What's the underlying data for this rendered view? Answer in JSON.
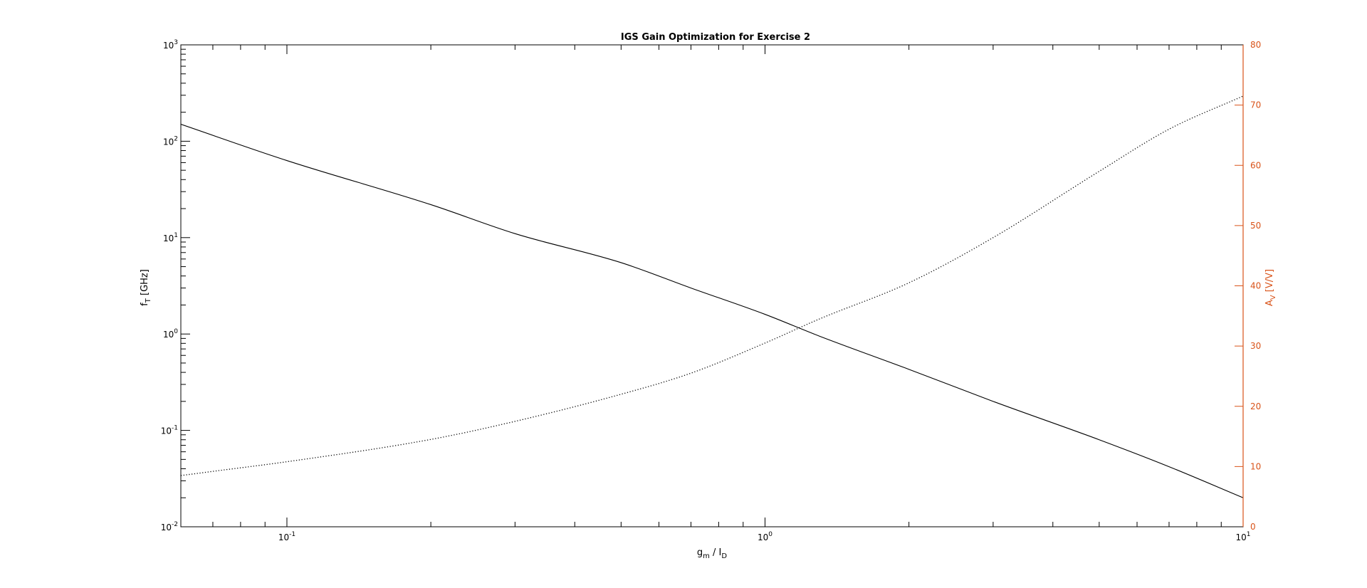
{
  "chart_data": {
    "type": "line",
    "title": "IGS Gain Optimization for Exercise 2",
    "xlabel": {
      "base": "g",
      "sub1": "m",
      "mid": " / I",
      "sub2": "D"
    },
    "ylabel_left": {
      "base": "f",
      "sub": "T",
      "rest": " [GHz]"
    },
    "ylabel_right": {
      "base": "A",
      "sub": "V",
      "rest": " [V/V]"
    },
    "x_scale": "log",
    "xlim": [
      0.06,
      10
    ],
    "ylim_left": [
      0.01,
      1000
    ],
    "ylim_left_scale": "log",
    "ylim_right": [
      0,
      80
    ],
    "x_ticks": [
      {
        "base": "10",
        "exp": "-1"
      },
      {
        "base": "10",
        "exp": "0"
      },
      {
        "base": "10",
        "exp": "1"
      }
    ],
    "y_left_ticks": [
      {
        "base": "10",
        "exp": "-2"
      },
      {
        "base": "10",
        "exp": "-1"
      },
      {
        "base": "10",
        "exp": "0"
      },
      {
        "base": "10",
        "exp": "1"
      },
      {
        "base": "10",
        "exp": "2"
      },
      {
        "base": "10",
        "exp": "3"
      }
    ],
    "y_right_ticks": [
      "0",
      "10",
      "20",
      "30",
      "40",
      "50",
      "60",
      "70",
      "80"
    ],
    "right_axis_color": "#D95319",
    "series": [
      {
        "axis": "left",
        "style": "solid",
        "color": "#000000",
        "x": [
          0.06,
          0.1,
          0.2,
          0.3,
          0.5,
          0.7,
          1.0,
          1.3,
          2.0,
          3.0,
          5.0,
          7.0,
          10.0
        ],
        "y": [
          150,
          63,
          22,
          11,
          5.5,
          3.0,
          1.6,
          0.95,
          0.43,
          0.2,
          0.08,
          0.042,
          0.02
        ]
      },
      {
        "axis": "right",
        "style": "dotted",
        "color": "#000000",
        "x": [
          0.06,
          0.07,
          0.1,
          0.2,
          0.3,
          0.5,
          0.7,
          1.0,
          1.3,
          2.0,
          3.0,
          5.0,
          7.0,
          10.0
        ],
        "y": [
          8.5,
          9.2,
          10.8,
          14.5,
          17.5,
          22.0,
          25.5,
          30.5,
          34.5,
          40.5,
          48.0,
          59.0,
          66.0,
          71.5
        ]
      }
    ]
  }
}
